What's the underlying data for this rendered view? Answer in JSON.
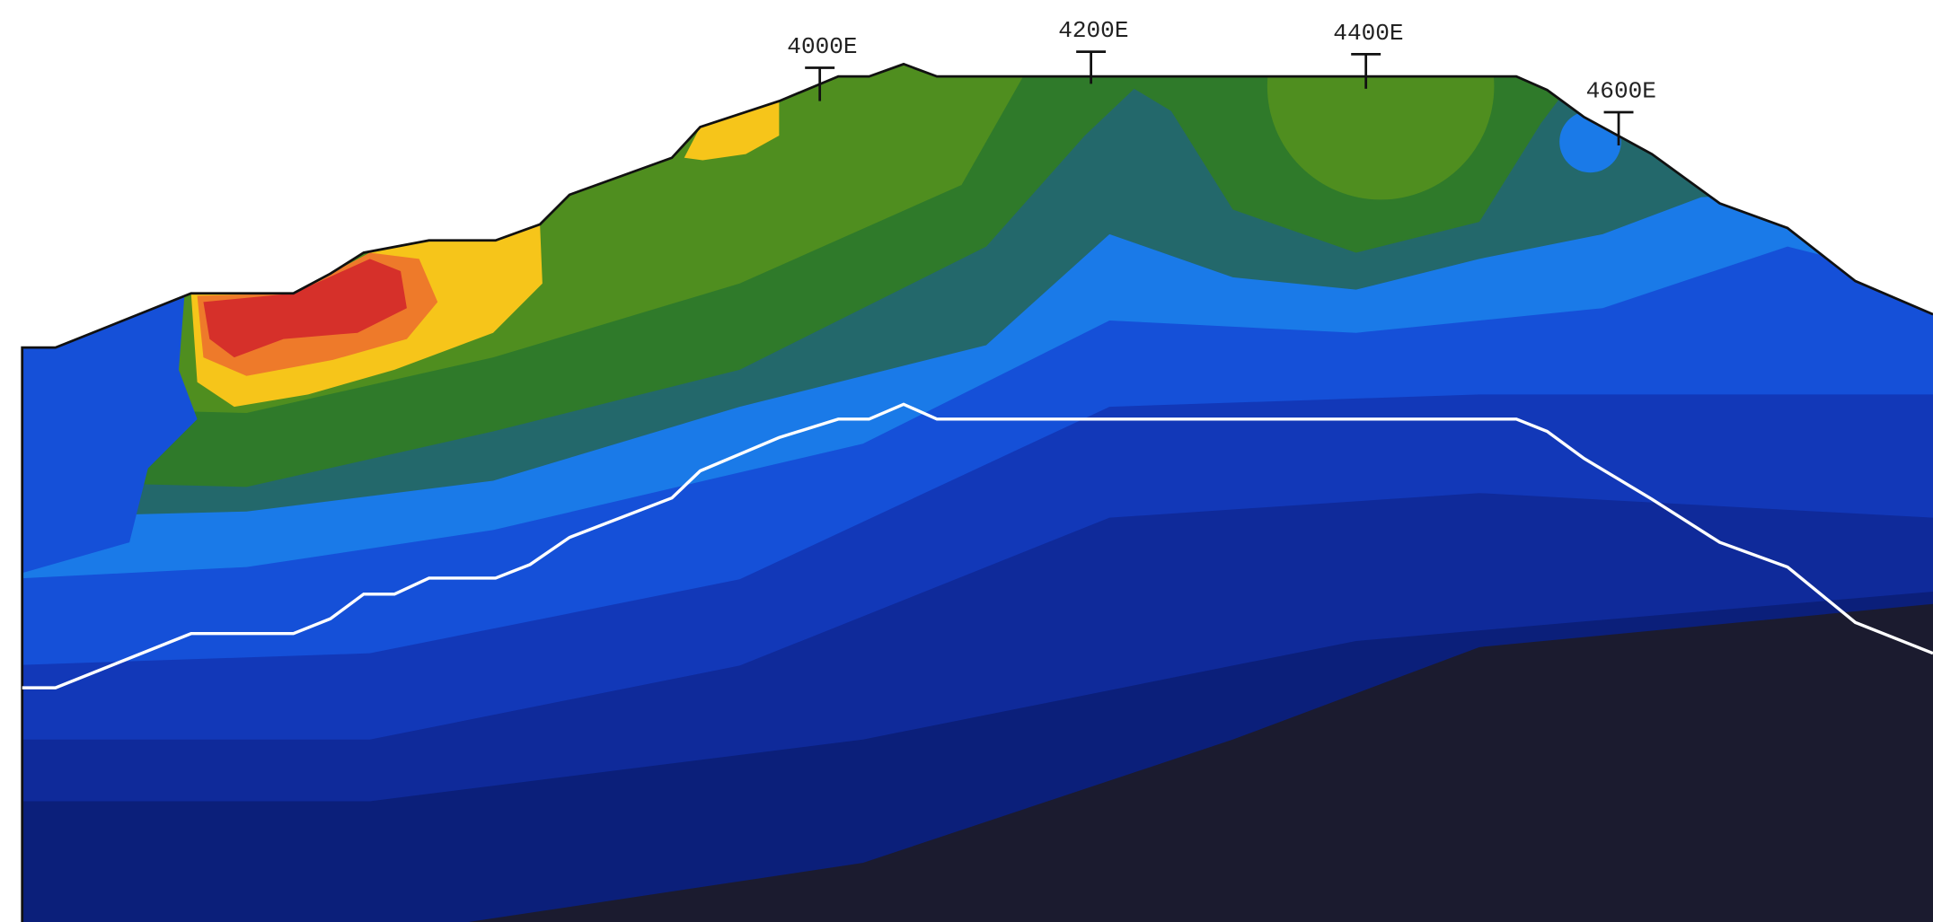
{
  "section": {
    "stations": [
      {
        "label": "4000E"
      },
      {
        "label": "4200E"
      },
      {
        "label": "4400E"
      },
      {
        "label": "4600E"
      }
    ]
  }
}
